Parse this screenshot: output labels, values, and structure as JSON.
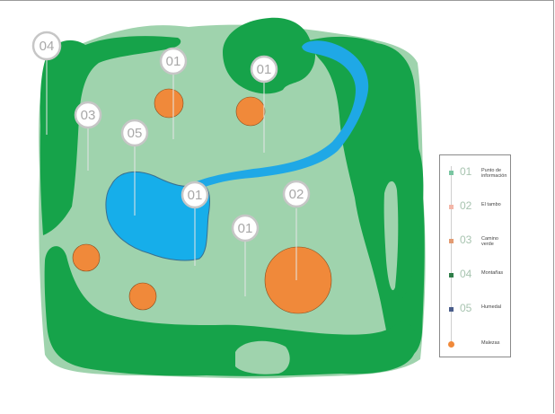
{
  "map": {
    "markers": [
      {
        "label": "04",
        "kind": "montanas"
      },
      {
        "label": "01",
        "kind": "punto"
      },
      {
        "label": "01",
        "kind": "punto"
      },
      {
        "label": "03",
        "kind": "camino"
      },
      {
        "label": "05",
        "kind": "humedal"
      },
      {
        "label": "01",
        "kind": "punto"
      },
      {
        "label": "02",
        "kind": "tambo"
      },
      {
        "label": "01",
        "kind": "punto"
      }
    ],
    "colors": {
      "outer_grass": "#9fd3ad",
      "forest": "#16a34a",
      "water": "#1fa8e6",
      "lagoon": "#16aeea",
      "orange": "#f0893a",
      "marker_stroke": "#c6c6c6"
    }
  },
  "legend": {
    "items": [
      {
        "num": "01",
        "text": "Punto de información",
        "color": "#79c5a1",
        "icon": "info-point-icon"
      },
      {
        "num": "02",
        "text": "El tambo",
        "color": "#f3b6a8",
        "icon": "tambo-icon"
      },
      {
        "num": "03",
        "text": "Camino verde",
        "color": "#e39b72",
        "icon": "path-icon"
      },
      {
        "num": "04",
        "text": "Montañas",
        "color": "#2e7d48",
        "icon": "mountain-icon"
      },
      {
        "num": "05",
        "text": "Humedal",
        "color": "#4a5d8a",
        "icon": "wetland-icon"
      },
      {
        "num": "",
        "text": "Malezas",
        "color": "#f0893a",
        "icon": "weeds-icon"
      }
    ]
  }
}
